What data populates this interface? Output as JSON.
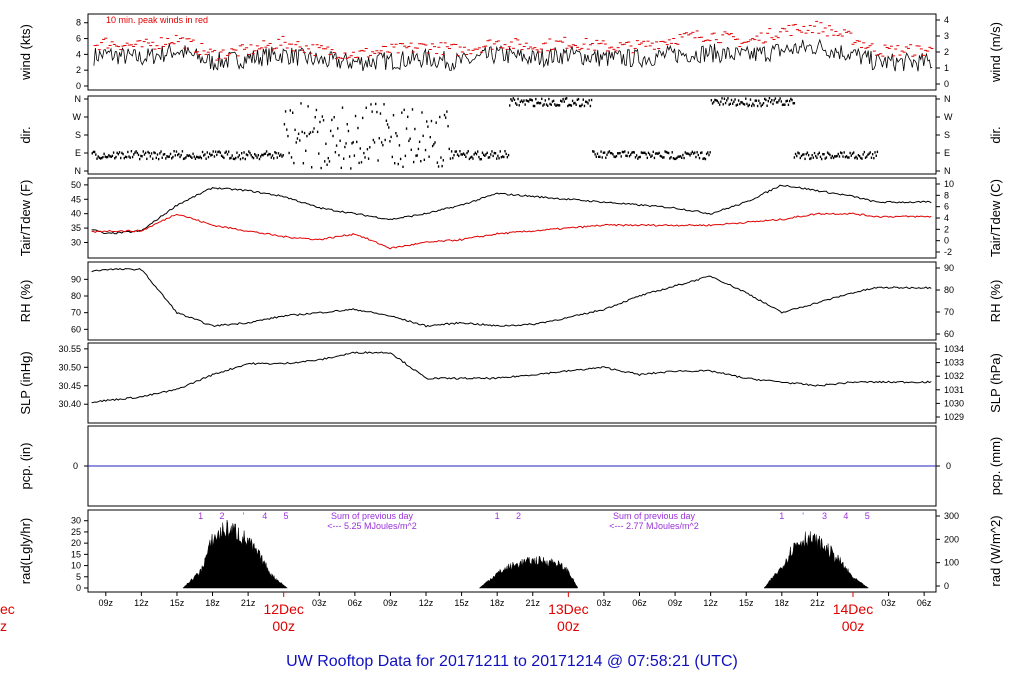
{
  "title": "UW Rooftop Data for 20171211  to  20171214 @ 07:58:21  (UTC)",
  "chart_data": [
    {
      "type": "line",
      "ylabel_left": "wind (kts)",
      "ylabel_right": "wind (m/s)",
      "annotation": "10 min. peak winds in red",
      "ylim": [
        0,
        8.6
      ],
      "yticks_left": [
        0,
        2,
        4,
        6,
        8
      ],
      "yticks_right": [
        "0",
        "1",
        "2",
        "3",
        "4"
      ],
      "series": [
        {
          "color": "#000000",
          "x_hours": [
            0,
            3,
            6,
            9,
            12,
            15,
            18,
            21,
            24,
            27,
            30,
            33,
            36,
            39,
            42,
            45,
            48,
            51,
            54,
            57,
            60,
            63,
            66,
            69,
            72,
            74
          ],
          "values": [
            2.5,
            3.0,
            3.3,
            4.0,
            3.5,
            4.5,
            3.0,
            3.5,
            4.0,
            3.2,
            3.0,
            3.2,
            3.5,
            3.0,
            4.0,
            3.5,
            4.0,
            3.5,
            3.5,
            4.0,
            4.2,
            3.8,
            4.5,
            5.0,
            4.0,
            3.0
          ]
        },
        {
          "color": "#e00000",
          "x_hours": [
            0,
            3,
            6,
            9,
            12,
            15,
            18,
            21,
            24,
            27,
            30,
            33,
            36,
            39,
            42,
            45,
            48,
            51,
            54,
            57,
            60,
            63,
            66,
            69,
            72,
            74
          ],
          "values": [
            3.5,
            4.0,
            4.5,
            5.5,
            5.0,
            6.0,
            4.0,
            4.5,
            5.5,
            4.5,
            4.0,
            4.5,
            5.0,
            4.5,
            5.5,
            5.0,
            5.5,
            5.0,
            5.0,
            6.0,
            6.5,
            5.5,
            7.0,
            7.5,
            6.0,
            4.5
          ]
        }
      ]
    },
    {
      "type": "scatter",
      "ylabel_left": "dir.",
      "ylabel_right": "dir.",
      "yticks_left": [
        "N",
        "W",
        "S",
        "E",
        "N"
      ],
      "yticks_right": [
        "N",
        "W",
        "S",
        "E",
        "N"
      ],
      "segments": [
        {
          "start_hour": 0,
          "end_hour": 4,
          "level": "scattered"
        },
        {
          "start_hour": 4,
          "end_hour": 24,
          "level": "E"
        },
        {
          "start_hour": 24,
          "end_hour": 38,
          "level": "scattered"
        },
        {
          "start_hour": 38,
          "end_hour": 43,
          "level": "E"
        },
        {
          "start_hour": 43,
          "end_hour": 50,
          "level": "N"
        },
        {
          "start_hour": 50,
          "end_hour": 60,
          "level": "E"
        },
        {
          "start_hour": 60,
          "end_hour": 67,
          "level": "N"
        },
        {
          "start_hour": 67,
          "end_hour": 74,
          "level": "E"
        }
      ]
    },
    {
      "type": "line",
      "ylabel_left": "Tair/Tdew (F)",
      "ylabel_right": "Tair/Tdew (C)",
      "ylim": [
        26,
        51
      ],
      "yticks_left": [
        30,
        35,
        40,
        45,
        50
      ],
      "yticks_right": [
        "-2",
        "0",
        "2",
        "4",
        "6",
        "8",
        "10"
      ],
      "series": [
        {
          "color": "#000000",
          "x_hours": [
            0,
            3,
            6,
            9,
            12,
            15,
            18,
            21,
            24,
            27,
            30,
            33,
            36,
            39,
            42,
            45,
            48,
            51,
            54,
            57,
            60,
            63,
            66,
            69,
            72,
            74
          ],
          "values": [
            40,
            39,
            37,
            33,
            34,
            43,
            49,
            48,
            46,
            42,
            40,
            38,
            40,
            43,
            47,
            46,
            45,
            44,
            43,
            42,
            40,
            44,
            50,
            48,
            46,
            44
          ]
        },
        {
          "color": "#e00000",
          "x_hours": [
            0,
            3,
            6,
            9,
            12,
            15,
            18,
            21,
            24,
            27,
            30,
            33,
            36,
            39,
            42,
            45,
            48,
            51,
            54,
            57,
            60,
            63,
            66,
            69,
            72,
            74
          ],
          "values": [
            34,
            32,
            33,
            34,
            34,
            40,
            36,
            34,
            32,
            31,
            33,
            28,
            30,
            31,
            33,
            34,
            35,
            36,
            36,
            36,
            36,
            37,
            38,
            40,
            40,
            39
          ]
        }
      ]
    },
    {
      "type": "line",
      "ylabel_left": "RH (%)",
      "ylabel_right": "RH (%)",
      "ylim": [
        56,
        98
      ],
      "yticks_left": [
        60,
        70,
        80,
        90
      ],
      "yticks_right": [
        "60",
        "70",
        "80",
        "90"
      ],
      "series": [
        {
          "color": "#000000",
          "x_hours": [
            0,
            3,
            6,
            9,
            12,
            15,
            18,
            21,
            24,
            27,
            30,
            33,
            36,
            39,
            42,
            45,
            48,
            51,
            54,
            57,
            60,
            63,
            66,
            69,
            72,
            74
          ],
          "values": [
            80,
            85,
            93,
            96,
            96,
            70,
            62,
            64,
            68,
            70,
            72,
            68,
            62,
            64,
            62,
            63,
            67,
            72,
            80,
            86,
            92,
            82,
            70,
            76,
            82,
            85
          ]
        }
      ]
    },
    {
      "type": "line",
      "ylabel_left": "SLP (inHg)",
      "ylabel_right": "SLP (hPa)",
      "ylim": [
        30.36,
        30.555
      ],
      "yticks_left": [
        "30.40",
        "30.45",
        "30.50",
        "30.55"
      ],
      "yticks_right": [
        "1029",
        "1030",
        "1031",
        "1032",
        "1033",
        "1034"
      ],
      "series": [
        {
          "color": "#000000",
          "x_hours": [
            0,
            3,
            6,
            9,
            12,
            15,
            18,
            21,
            24,
            27,
            30,
            33,
            36,
            39,
            42,
            45,
            48,
            51,
            54,
            57,
            60,
            63,
            66,
            69,
            72,
            74
          ],
          "values": [
            30.38,
            30.39,
            30.4,
            30.41,
            30.42,
            30.44,
            30.48,
            30.51,
            30.51,
            30.52,
            30.54,
            30.54,
            30.47,
            30.47,
            30.47,
            30.48,
            30.49,
            30.5,
            30.48,
            30.49,
            30.49,
            30.47,
            30.46,
            30.45,
            30.46,
            30.46
          ]
        }
      ]
    },
    {
      "type": "line",
      "ylabel_left": "pcp. (in)",
      "ylabel_right": "pcp. (mm)",
      "yticks_left": [
        "0"
      ],
      "yticks_right": [
        "0"
      ],
      "series": [
        {
          "color": "#2020c0",
          "x_hours": [
            0,
            74
          ],
          "values": [
            0,
            0
          ]
        }
      ]
    },
    {
      "type": "area",
      "ylabel_left": "rad(Lgly/hr)",
      "ylabel_right": "rad (W/m^2)",
      "ylim": [
        0,
        33
      ],
      "yticks_left": [
        0,
        5,
        10,
        15,
        20,
        25,
        30
      ],
      "yticks_right": [
        "0",
        "100",
        "200",
        "300"
      ],
      "days": [
        {
          "x_hours": [
            15.5,
            17,
            18,
            19,
            20,
            21,
            22,
            23,
            24.3
          ],
          "values": [
            0,
            8,
            23,
            28,
            27,
            22,
            15,
            6,
            0
          ],
          "markers": [
            "1",
            "2",
            "'",
            "4",
            "5"
          ]
        },
        {
          "x_hours": [
            40.5,
            42,
            43,
            44,
            45,
            46,
            47,
            48,
            48.8
          ],
          "values": [
            0,
            7,
            10,
            12,
            13,
            13,
            12,
            8,
            0
          ],
          "markers": [
            "1",
            "2"
          ]
        },
        {
          "x_hours": [
            64.5,
            66,
            67,
            68,
            69,
            70,
            71,
            72,
            73.3
          ],
          "values": [
            0,
            10,
            20,
            24,
            22,
            18,
            12,
            5,
            0
          ],
          "markers": [
            "1",
            "'",
            "3",
            "4",
            "5"
          ]
        }
      ],
      "notes": [
        {
          "lines": [
            "Sum of previous day",
            "<--- 5.25 MJoules/m^2"
          ]
        },
        {
          "lines": [
            "Sum of previous day",
            "<--- 2.77 MJoules/m^2"
          ]
        }
      ]
    }
  ],
  "x_axis": {
    "ticks": [
      "09z",
      "12z",
      "15z",
      "18z",
      "21z",
      "03z",
      "06z",
      "09z",
      "12z",
      "15z",
      "18z",
      "21z",
      "03z",
      "06z",
      "09z",
      "12z",
      "15z",
      "18z",
      "21z",
      "03z",
      "06z"
    ],
    "tick_hours": [
      9,
      12,
      15,
      18,
      21,
      27,
      30,
      33,
      36,
      39,
      42,
      45,
      51,
      54,
      57,
      60,
      63,
      66,
      69,
      75,
      78
    ],
    "day_labels": [
      {
        "hour": 24,
        "date": "12Dec",
        "time": "00z"
      },
      {
        "hour": 48,
        "date": "13Dec",
        "time": "00z"
      },
      {
        "hour": 72,
        "date": "14Dec",
        "time": "00z"
      }
    ],
    "cut_label": {
      "date": "ec",
      "time": "z"
    }
  }
}
